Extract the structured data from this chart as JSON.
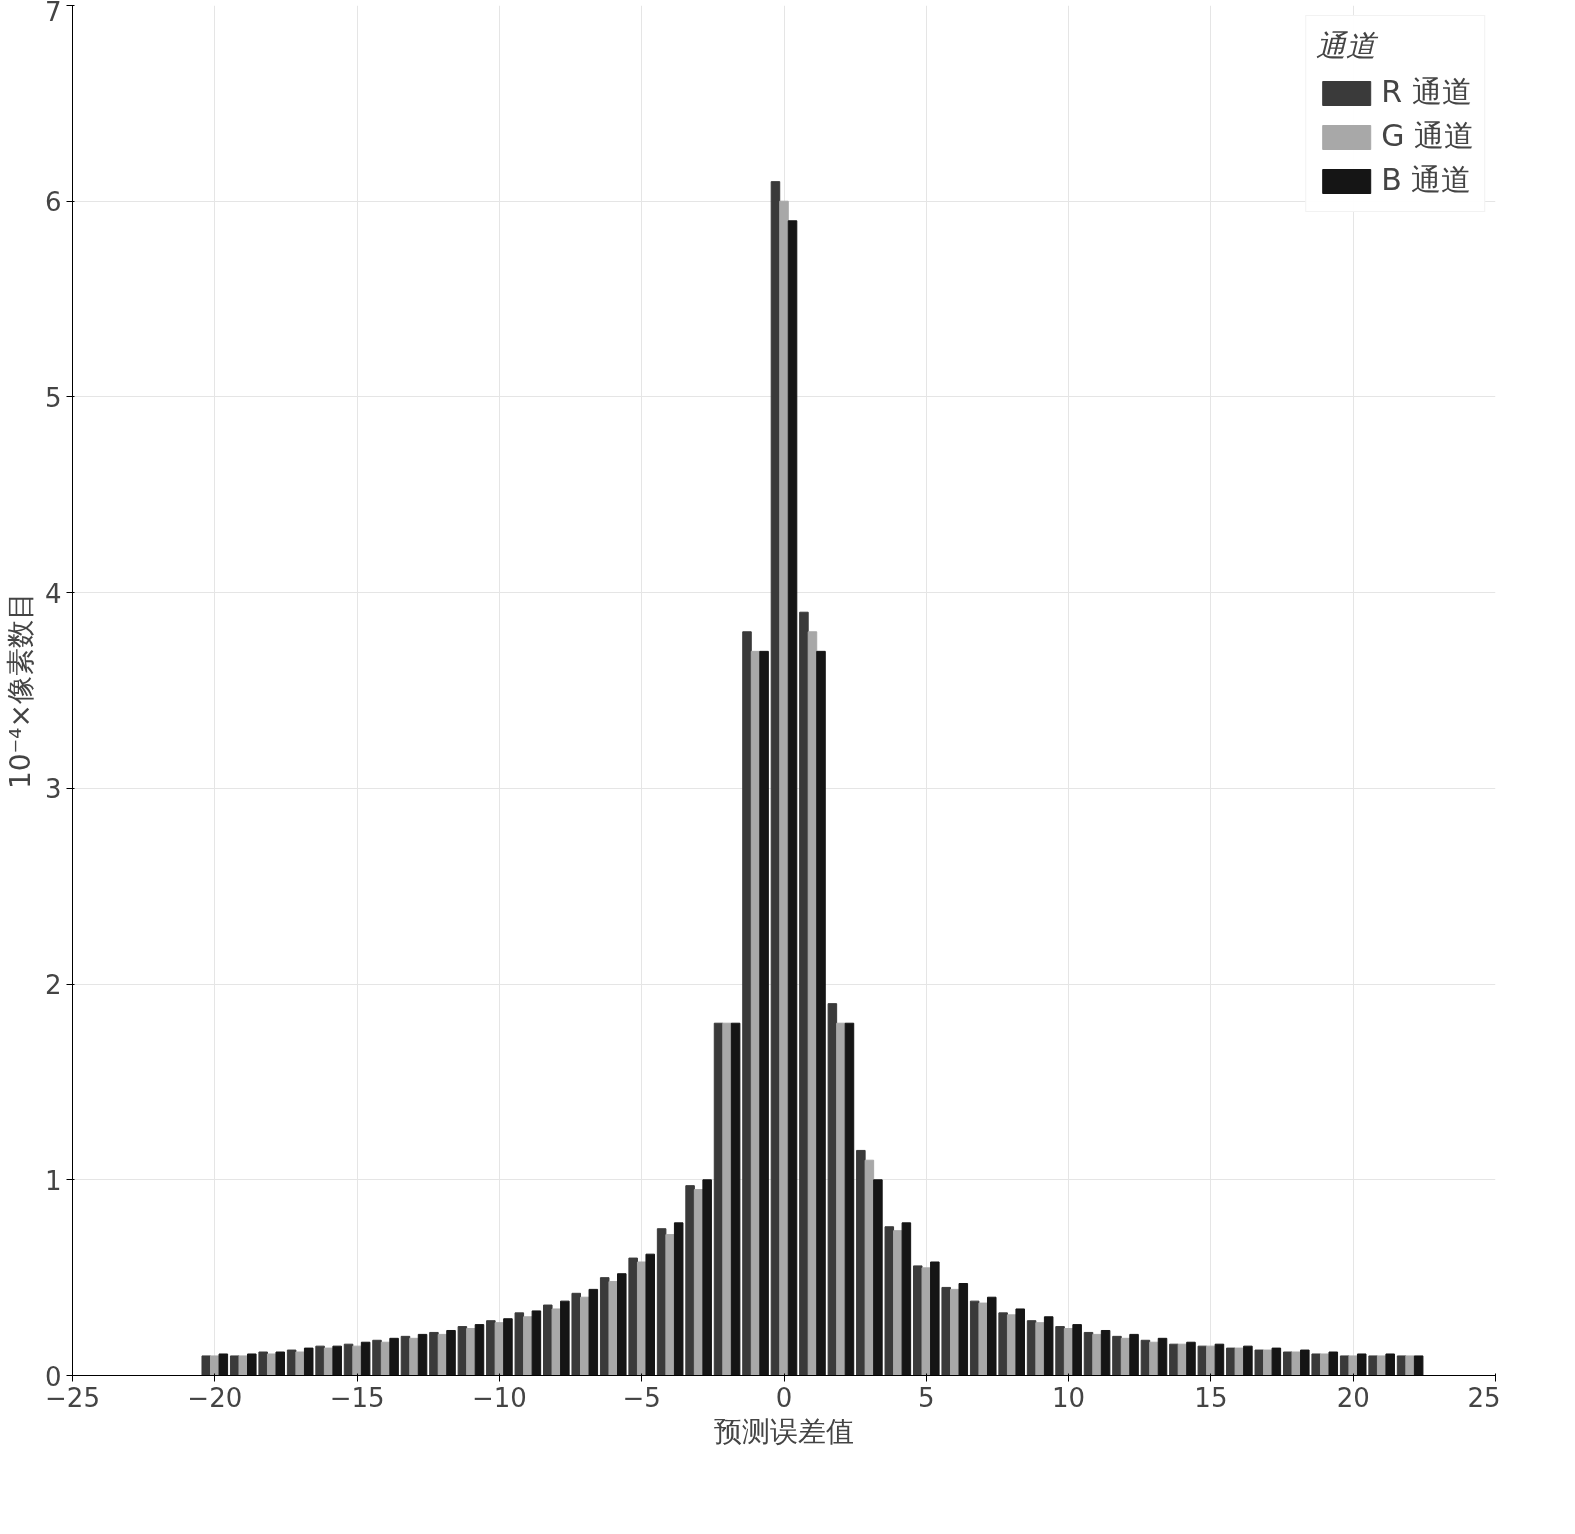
{
  "chart_data": {
    "type": "bar",
    "xlabel": "预测误差值",
    "ylabel": "10⁻⁴×像素数目",
    "legend_title": "通道",
    "x": [
      -20,
      -19,
      -18,
      -17,
      -16,
      -15,
      -14,
      -13,
      -12,
      -11,
      -10,
      -9,
      -8,
      -7,
      -6,
      -5,
      -4,
      -3,
      -2,
      -1,
      0,
      1,
      2,
      3,
      4,
      5,
      6,
      7,
      8,
      9,
      10,
      11,
      12,
      13,
      14,
      15,
      16,
      17,
      18,
      19,
      20,
      21,
      22
    ],
    "series": [
      {
        "name": "R 通道",
        "color": "#3a3a3a",
        "values": [
          0.1,
          0.1,
          0.12,
          0.13,
          0.15,
          0.16,
          0.18,
          0.2,
          0.22,
          0.25,
          0.28,
          0.32,
          0.36,
          0.42,
          0.5,
          0.6,
          0.75,
          0.97,
          1.8,
          3.8,
          6.1,
          3.9,
          1.9,
          1.15,
          0.76,
          0.56,
          0.45,
          0.38,
          0.32,
          0.28,
          0.25,
          0.22,
          0.2,
          0.18,
          0.16,
          0.15,
          0.14,
          0.13,
          0.12,
          0.11,
          0.1,
          0.1,
          0.1
        ]
      },
      {
        "name": "G 通道",
        "color": "#a8a8a8",
        "values": [
          0.1,
          0.1,
          0.11,
          0.12,
          0.14,
          0.15,
          0.17,
          0.19,
          0.21,
          0.24,
          0.27,
          0.3,
          0.34,
          0.4,
          0.48,
          0.58,
          0.72,
          0.95,
          1.8,
          3.7,
          6.0,
          3.8,
          1.8,
          1.1,
          0.74,
          0.55,
          0.44,
          0.37,
          0.31,
          0.27,
          0.24,
          0.21,
          0.19,
          0.17,
          0.16,
          0.15,
          0.14,
          0.13,
          0.12,
          0.11,
          0.1,
          0.1,
          0.1
        ]
      },
      {
        "name": "B 通道",
        "color": "#151515",
        "values": [
          0.11,
          0.11,
          0.12,
          0.14,
          0.15,
          0.17,
          0.19,
          0.21,
          0.23,
          0.26,
          0.29,
          0.33,
          0.38,
          0.44,
          0.52,
          0.62,
          0.78,
          1.0,
          1.8,
          3.7,
          5.9,
          3.7,
          1.8,
          1.0,
          0.78,
          0.58,
          0.47,
          0.4,
          0.34,
          0.3,
          0.26,
          0.23,
          0.21,
          0.19,
          0.17,
          0.16,
          0.15,
          0.14,
          0.13,
          0.12,
          0.11,
          0.11,
          0.1
        ]
      }
    ],
    "xlim": [
      -25,
      25
    ],
    "xticks": [
      -25,
      -20,
      -15,
      -10,
      -5,
      0,
      5,
      10,
      15,
      20,
      25
    ],
    "ylim": [
      0,
      7
    ],
    "yticks": [
      0,
      1,
      2,
      3,
      4,
      5,
      6,
      7
    ],
    "grid": true,
    "legend": "top right"
  }
}
